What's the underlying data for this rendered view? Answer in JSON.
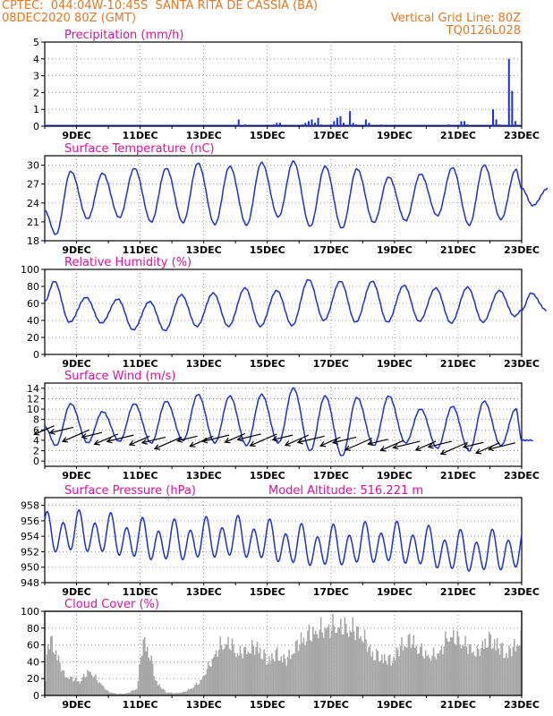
{
  "header": {
    "left_line1": "CPTEC:  044:04W-10:45S  SANTA RITA DE CASSIA (BA)",
    "left_line2": "08DEC2020 80Z (GMT)",
    "right_line2": "Vertical Grid Line: 80Z",
    "right_line3": "TQ0126L028"
  },
  "colors": {
    "header": "#e87722",
    "title": "#e0109a",
    "series": "#1a2ee8",
    "cloud": "#a6a6a6",
    "arrow": "#000000",
    "grid": "#808080"
  },
  "x_ticks": [
    "9DEC",
    "11DEC",
    "13DEC",
    "15DEC",
    "17DEC",
    "19DEC",
    "21DEC",
    "23DEC"
  ],
  "chart_data": [
    {
      "id": "precip",
      "type": "bar",
      "title": "Precipitation (mm/h)",
      "ylim": [
        0,
        5
      ],
      "yticks": [
        0,
        1,
        2,
        3,
        4,
        5
      ],
      "x_days": [
        14.1,
        14.3,
        15.2,
        15.3,
        15.4,
        16.1,
        16.2,
        16.3,
        16.4,
        16.5,
        16.6,
        16.7,
        17.0,
        17.1,
        17.2,
        17.3,
        17.4,
        17.6,
        17.7,
        17.8,
        18.1,
        18.2,
        18.6,
        20.7,
        21.1,
        21.2,
        21.3,
        22.1,
        22.2,
        22.3,
        22.6,
        22.7,
        22.8
      ],
      "values": [
        0.4,
        0.1,
        0.1,
        0.2,
        0.2,
        0.1,
        0.2,
        0.3,
        0.4,
        0.2,
        0.5,
        0.1,
        0.1,
        0.3,
        0.5,
        0.6,
        0.2,
        0.9,
        0.2,
        0.1,
        0.4,
        0.2,
        0.1,
        0.1,
        0.3,
        0.3,
        0.1,
        1.0,
        0.4,
        0.1,
        4.0,
        2.1,
        0.3
      ]
    },
    {
      "id": "temp",
      "type": "line",
      "title": "Surface Temperature (nC)",
      "ylim": [
        18,
        31.5
      ],
      "yticks": [
        18,
        21,
        24,
        27,
        30
      ],
      "line": {
        "mean": 24.8,
        "amp": 4.2,
        "cycles": 15
      },
      "peaks": [
        26.5,
        29.0,
        28.7,
        29.5,
        29.5,
        30.3,
        29.8,
        30.4,
        30.6,
        29.8,
        29.4,
        28.1,
        28.6,
        29.6,
        30.0,
        29.3,
        26.3
      ],
      "troughs": [
        19.0,
        21.5,
        21.7,
        21.0,
        20.9,
        20.6,
        20.5,
        21.8,
        20.3,
        20.0,
        20.9,
        21.2,
        22.0,
        20.5,
        21.4,
        23.6
      ]
    },
    {
      "id": "rh",
      "type": "line",
      "title": "Relative Humidity (%)",
      "ylim": [
        0,
        100
      ],
      "yticks": [
        0,
        20,
        40,
        60,
        80,
        100
      ],
      "line": {
        "mean": 52,
        "amp": 22,
        "cycles": 15
      },
      "peaks": [
        86,
        67,
        65,
        62,
        70,
        72,
        78,
        75,
        88,
        86,
        86,
        81,
        78,
        79,
        75,
        72
      ],
      "troughs": [
        38,
        37,
        29,
        28,
        33,
        33,
        33,
        34,
        40,
        38,
        38,
        39,
        37,
        38,
        45,
        52
      ]
    },
    {
      "id": "wind",
      "type": "line",
      "title": "Surface Wind (m/s)",
      "ylim": [
        -1,
        15
      ],
      "yticks": [
        0,
        2,
        4,
        6,
        8,
        10,
        12,
        14
      ],
      "line": {
        "mean": 6,
        "amp": 3.5,
        "cycles": 15
      },
      "peaks": [
        10.2,
        11.0,
        9.5,
        11.0,
        11.5,
        12.8,
        12.5,
        12.8,
        14.0,
        12.5,
        12.2,
        12.5,
        10.0,
        10.5,
        11.5,
        10.0
      ],
      "troughs": [
        3.0,
        3.5,
        3.8,
        3.5,
        4.0,
        3.5,
        3.0,
        3.5,
        2.0,
        1.0,
        3.0,
        3.5,
        2.5,
        2.0,
        3.0,
        4.0
      ],
      "arrows": [
        [
          8.3,
          6.8
        ],
        [
          8.9,
          6.5
        ],
        [
          9.4,
          6.0
        ],
        [
          9.8,
          5.5
        ],
        [
          10.3,
          5.2
        ],
        [
          10.8,
          5.0
        ],
        [
          11.3,
          4.8
        ],
        [
          11.8,
          4.6
        ],
        [
          12.3,
          4.6
        ],
        [
          12.8,
          4.8
        ],
        [
          13.3,
          4.8
        ],
        [
          13.8,
          5.0
        ],
        [
          14.3,
          5.3
        ],
        [
          14.8,
          5.2
        ],
        [
          15.3,
          5.2
        ],
        [
          15.8,
          5.0
        ],
        [
          16.3,
          5.0
        ],
        [
          16.8,
          4.8
        ],
        [
          17.3,
          4.6
        ],
        [
          17.8,
          4.6
        ],
        [
          18.3,
          4.4
        ],
        [
          18.8,
          4.2
        ],
        [
          19.3,
          4.0
        ],
        [
          19.8,
          3.8
        ],
        [
          20.3,
          3.8
        ],
        [
          20.8,
          3.8
        ],
        [
          21.3,
          3.6
        ],
        [
          21.8,
          3.6
        ],
        [
          22.3,
          3.5
        ],
        [
          22.8,
          3.5
        ]
      ]
    },
    {
      "id": "press",
      "type": "line",
      "title": "Surface Pressure (hPa)",
      "subtitle": "Model Altitude: 516.221  m",
      "ylim": [
        948,
        959
      ],
      "yticks": [
        948,
        950,
        952,
        954,
        956,
        958
      ],
      "line": {
        "mean": 953.3,
        "amp": 2.2,
        "cycles": 30
      },
      "trend": -2.2
    },
    {
      "id": "cloud",
      "type": "area",
      "title": "Cloud Cover (%)",
      "ylim": [
        0,
        100
      ],
      "yticks": [
        0,
        20,
        40,
        60,
        80,
        100
      ],
      "profile_x": [
        8.0,
        8.1,
        8.3,
        8.6,
        8.8,
        9.1,
        9.4,
        9.7,
        10.0,
        10.3,
        10.6,
        10.9,
        11.1,
        11.3,
        11.5,
        11.8,
        12.1,
        12.4,
        12.6,
        12.9,
        13.2,
        13.5,
        13.8,
        14.1,
        14.4,
        14.7,
        15.0,
        15.3,
        15.6,
        15.9,
        16.2,
        16.5,
        16.8,
        17.1,
        17.4,
        17.7,
        18.0,
        18.3,
        18.6,
        18.9,
        19.2,
        19.5,
        19.8,
        20.1,
        20.4,
        20.7,
        21.0,
        21.3,
        21.6,
        21.9,
        22.2,
        22.5,
        22.8,
        23.0
      ],
      "profile_y": [
        10,
        80,
        70,
        30,
        25,
        20,
        35,
        20,
        5,
        2,
        3,
        10,
        80,
        60,
        20,
        5,
        3,
        5,
        10,
        20,
        45,
        70,
        75,
        60,
        65,
        70,
        50,
        60,
        50,
        70,
        85,
        90,
        95,
        98,
        97,
        95,
        85,
        60,
        55,
        50,
        70,
        80,
        65,
        55,
        60,
        85,
        80,
        70,
        60,
        80,
        75,
        60,
        70,
        85
      ]
    }
  ]
}
